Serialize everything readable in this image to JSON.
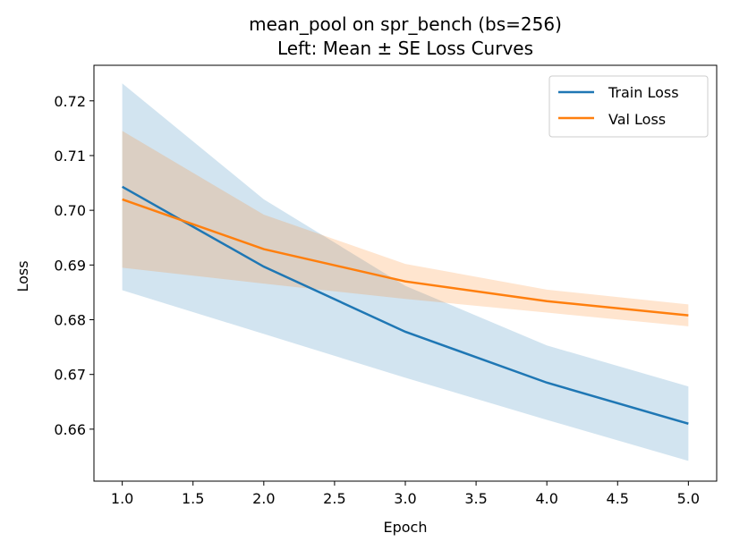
{
  "chart_data": {
    "type": "line",
    "title": "mean_pool on spr_bench (bs=256)",
    "subtitle": "Left: Mean ± SE Loss Curves",
    "xlabel": "Epoch",
    "ylabel": "Loss",
    "x": [
      1,
      2,
      3,
      4,
      5
    ],
    "xlim": [
      0.8,
      5.2
    ],
    "ylim": [
      0.6505,
      0.7265
    ],
    "xticks": [
      "1.0",
      "1.5",
      "2.0",
      "2.5",
      "3.0",
      "3.5",
      "4.0",
      "4.5",
      "5.0"
    ],
    "yticks": [
      "0.66",
      "0.67",
      "0.68",
      "0.69",
      "0.70",
      "0.71",
      "0.72"
    ],
    "grid": false,
    "legend_position": "top-right",
    "series": [
      {
        "name": "Train Loss",
        "color": "#1f77b4",
        "values": [
          0.7043,
          0.6897,
          0.6778,
          0.6685,
          0.661
        ],
        "upper": [
          0.7232,
          0.702,
          0.6862,
          0.6753,
          0.6678
        ],
        "lower": [
          0.6854,
          0.6774,
          0.6694,
          0.6617,
          0.6542
        ]
      },
      {
        "name": "Val Loss",
        "color": "#ff7f0e",
        "values": [
          0.702,
          0.6929,
          0.687,
          0.6834,
          0.6808
        ],
        "upper": [
          0.7145,
          0.6992,
          0.6902,
          0.6855,
          0.6828
        ],
        "lower": [
          0.6895,
          0.6866,
          0.6838,
          0.6813,
          0.6788
        ]
      }
    ]
  }
}
